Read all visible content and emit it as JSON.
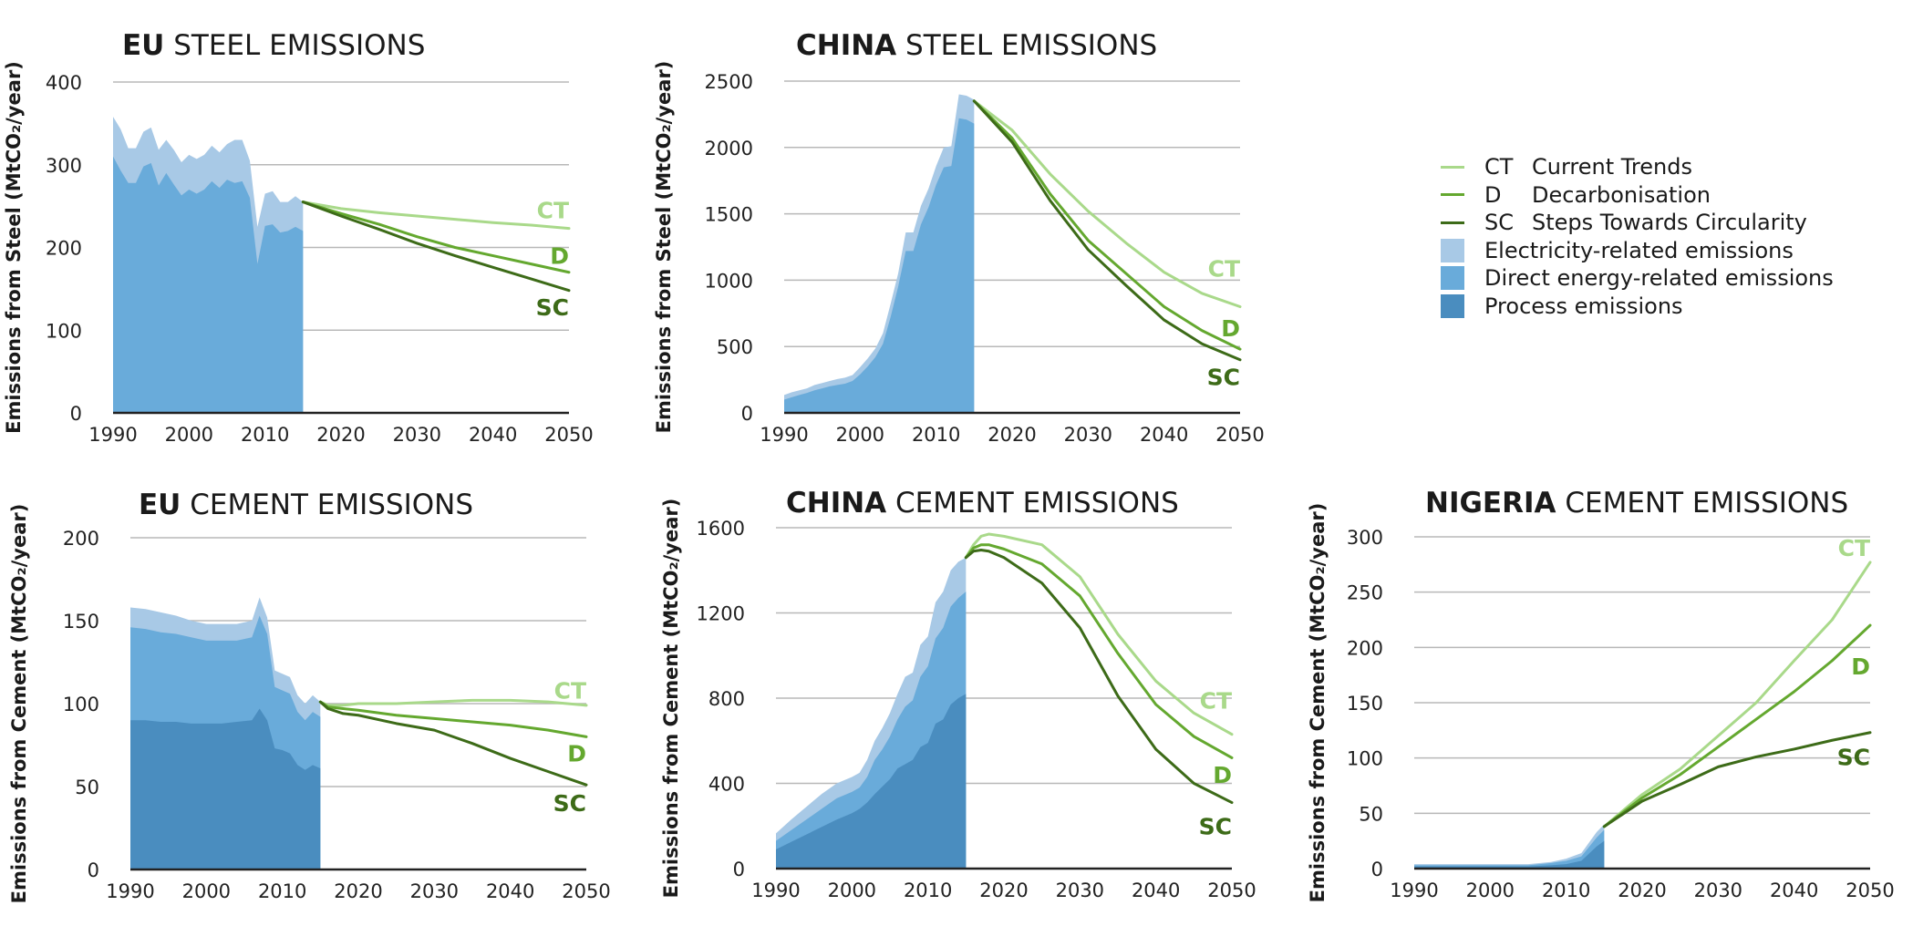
{
  "colors": {
    "CT": "#a9d98a",
    "D": "#64a82f",
    "SC": "#3d6b18",
    "electricity": "#a8c9e6",
    "direct": "#69abda",
    "process": "#4a8dbf",
    "grid": "#b8b8b8",
    "axis": "#222222"
  },
  "legend": [
    {
      "code": "CT",
      "label": "Current Trends",
      "kind": "line",
      "color": "#a9d98a"
    },
    {
      "code": "D",
      "label": "Decarbonisation",
      "kind": "line",
      "color": "#64a82f"
    },
    {
      "code": "SC",
      "label": "Steps Towards Circularity",
      "kind": "line",
      "color": "#3d6b18"
    },
    {
      "code": "",
      "label": "Electricity-related emissions",
      "kind": "box",
      "color": "#a8c9e6"
    },
    {
      "code": "",
      "label": "Direct energy-related emissions",
      "kind": "box",
      "color": "#69abda"
    },
    {
      "code": "",
      "label": "Process emissions",
      "kind": "box",
      "color": "#4a8dbf"
    }
  ],
  "chart_data": [
    {
      "id": "eu-steel",
      "type": "area",
      "title_bold": "EU",
      "title_rest": "STEEL EMISSIONS",
      "ylabel": "Emissions from Steel (MtCO₂/year)",
      "xlim": [
        1990,
        2050
      ],
      "ylim": [
        0,
        400
      ],
      "yticks": [
        0,
        100,
        200,
        300,
        400
      ],
      "xticks": [
        1990,
        2000,
        2010,
        2020,
        2030,
        2040,
        2050
      ],
      "history": {
        "years": [
          1990,
          1991,
          1992,
          1993,
          1994,
          1995,
          1996,
          1997,
          1998,
          1999,
          2000,
          2001,
          2002,
          2003,
          2004,
          2005,
          2006,
          2007,
          2008,
          2009,
          2010,
          2011,
          2012,
          2013,
          2014,
          2015
        ],
        "series": [
          {
            "name": "Electricity-related emissions",
            "values": [
              358,
              343,
              320,
              320,
              340,
              345,
              318,
              330,
              318,
              303,
              312,
              307,
              312,
              323,
              315,
              325,
              330,
              330,
              305,
              225,
              265,
              268,
              255,
              255,
              262,
              255
            ]
          },
          {
            "name": "Direct energy-related emissions",
            "values": [
              310,
              293,
              278,
              278,
              298,
              302,
              275,
              290,
              276,
              263,
              270,
              265,
              270,
              280,
              272,
              282,
              278,
              280,
              260,
              180,
              226,
              228,
              218,
              220,
              225,
              220
            ]
          }
        ]
      },
      "projection": {
        "years": [
          2015,
          2020,
          2025,
          2030,
          2035,
          2040,
          2045,
          2050
        ],
        "series": [
          {
            "name": "CT",
            "values": [
              255,
              247,
              242,
              238,
              234,
              230,
              227,
              223
            ]
          },
          {
            "name": "D",
            "values": [
              255,
              241,
              228,
              213,
              200,
              190,
              180,
              170
            ]
          },
          {
            "name": "SC",
            "values": [
              255,
              238,
              222,
              205,
              190,
              176,
              162,
              148
            ]
          }
        ]
      },
      "labels": [
        {
          "text": "CT",
          "series": "CT",
          "x": 2050,
          "y": 245
        },
        {
          "text": "D",
          "series": "D",
          "x": 2050,
          "y": 190
        },
        {
          "text": "SC",
          "series": "SC",
          "x": 2050,
          "y": 128
        }
      ]
    },
    {
      "id": "china-steel",
      "type": "area",
      "title_bold": "CHINA",
      "title_rest": "STEEL EMISSIONS",
      "ylabel": "Emissions from Steel (MtCO₂/year)",
      "xlim": [
        1990,
        2050
      ],
      "ylim": [
        0,
        2500
      ],
      "yticks": [
        0,
        500,
        1000,
        1500,
        2000,
        2500
      ],
      "xticks": [
        1990,
        2000,
        2010,
        2020,
        2030,
        2040,
        2050
      ],
      "history": {
        "years": [
          1990,
          1991,
          1992,
          1993,
          1994,
          1995,
          1996,
          1997,
          1998,
          1999,
          2000,
          2001,
          2002,
          2003,
          2004,
          2005,
          2006,
          2007,
          2008,
          2009,
          2010,
          2011,
          2012,
          2013,
          2014,
          2015
        ],
        "series": [
          {
            "name": "Electricity-related emissions",
            "values": [
              135,
              155,
              170,
              185,
              210,
              225,
              240,
              255,
              265,
              285,
              345,
              410,
              485,
              600,
              820,
              1050,
              1360,
              1360,
              1560,
              1690,
              1860,
              2000,
              2010,
              2400,
              2390,
              2360
            ]
          },
          {
            "name": "Direct energy-related emissions",
            "values": [
              100,
              118,
              135,
              150,
              170,
              185,
              200,
              210,
              220,
              240,
              290,
              350,
              420,
              520,
              720,
              950,
              1220,
              1220,
              1420,
              1550,
              1720,
              1850,
              1860,
              2220,
              2210,
              2180
            ]
          }
        ]
      },
      "projection": {
        "years": [
          2015,
          2020,
          2025,
          2030,
          2035,
          2040,
          2045,
          2050
        ],
        "series": [
          {
            "name": "CT",
            "values": [
              2350,
              2130,
              1800,
              1520,
              1280,
              1060,
              900,
              800
            ]
          },
          {
            "name": "D",
            "values": [
              2350,
              2070,
              1650,
              1300,
              1050,
              800,
              620,
              480
            ]
          },
          {
            "name": "SC",
            "values": [
              2350,
              2040,
              1600,
              1230,
              960,
              700,
              520,
              400
            ]
          }
        ]
      },
      "labels": [
        {
          "text": "CT",
          "series": "CT",
          "x": 2050,
          "y": 1090
        },
        {
          "text": "D",
          "series": "D",
          "x": 2050,
          "y": 640
        },
        {
          "text": "SC",
          "series": "SC",
          "x": 2050,
          "y": 270
        }
      ]
    },
    {
      "id": "eu-cement",
      "type": "area",
      "title_bold": "EU",
      "title_rest": "CEMENT EMISSIONS",
      "ylabel": "Emissions from Cement (MtCO₂/year)",
      "xlim": [
        1990,
        2050
      ],
      "ylim": [
        0,
        200
      ],
      "yticks": [
        0,
        50,
        100,
        150,
        200
      ],
      "xticks": [
        1990,
        2000,
        2010,
        2020,
        2030,
        2040,
        2050
      ],
      "history": {
        "years": [
          1990,
          1992,
          1994,
          1996,
          1998,
          2000,
          2002,
          2004,
          2006,
          2007,
          2008,
          2009,
          2010,
          2011,
          2012,
          2013,
          2014,
          2015
        ],
        "series": [
          {
            "name": "Electricity-related emissions",
            "values": [
              158,
              157,
              155,
              153,
              150,
              148,
              148,
              148,
              150,
              164,
              152,
              120,
              118,
              116,
              105,
              100,
              105,
              101
            ]
          },
          {
            "name": "Direct energy-related emissions",
            "values": [
              146,
              145,
              143,
              142,
              140,
              138,
              138,
              138,
              140,
              153,
              142,
              110,
              108,
              106,
              95,
              90,
              95,
              92
            ]
          },
          {
            "name": "Process emissions",
            "values": [
              90,
              90,
              89,
              89,
              88,
              88,
              88,
              89,
              90,
              97,
              90,
              73,
              72,
              70,
              63,
              60,
              63,
              61
            ]
          }
        ]
      },
      "projection": {
        "years": [
          2015,
          2016,
          2018,
          2020,
          2025,
          2030,
          2035,
          2040,
          2045,
          2050
        ],
        "series": [
          {
            "name": "CT",
            "values": [
              101,
              99,
              99,
              100,
              100,
              101,
              102,
              102,
              101,
              99
            ]
          },
          {
            "name": "D",
            "values": [
              101,
              98,
              97,
              96,
              93,
              91,
              89,
              87,
              84,
              80
            ]
          },
          {
            "name": "SC",
            "values": [
              101,
              97,
              94,
              93,
              88,
              84,
              76,
              67,
              59,
              51
            ]
          }
        ]
      },
      "labels": [
        {
          "text": "CT",
          "series": "CT",
          "x": 2050,
          "y": 108
        },
        {
          "text": "D",
          "series": "D",
          "x": 2050,
          "y": 70
        },
        {
          "text": "SC",
          "series": "SC",
          "x": 2050,
          "y": 40
        }
      ]
    },
    {
      "id": "china-cement",
      "type": "area",
      "title_bold": "CHINA",
      "title_rest": "CEMENT EMISSIONS",
      "ylabel": "Emissions from Cement (MtCO₂/year)",
      "xlim": [
        1990,
        2050
      ],
      "ylim": [
        0,
        1700
      ],
      "yticks": [
        0,
        400,
        800,
        1200,
        1600
      ],
      "xticks": [
        1990,
        2000,
        2010,
        2020,
        2030,
        2040,
        2050
      ],
      "history": {
        "years": [
          1990,
          1992,
          1994,
          1996,
          1998,
          2000,
          2001,
          2002,
          2003,
          2004,
          2005,
          2006,
          2007,
          2008,
          2009,
          2010,
          2011,
          2012,
          2013,
          2014,
          2015
        ],
        "series": [
          {
            "name": "Electricity-related emissions",
            "values": [
              165,
              230,
              290,
              350,
              400,
              430,
              450,
              510,
              600,
              660,
              730,
              820,
              900,
              920,
              1050,
              1090,
              1250,
              1300,
              1400,
              1440,
              1460
            ]
          },
          {
            "name": "Direct energy-related emissions",
            "values": [
              130,
              180,
              230,
              280,
              330,
              360,
              380,
              430,
              510,
              560,
              620,
              700,
              760,
              790,
              900,
              950,
              1080,
              1130,
              1230,
              1270,
              1300
            ]
          },
          {
            "name": "Process emissions",
            "values": [
              90,
              125,
              160,
              195,
              230,
              260,
              280,
              310,
              350,
              385,
              420,
              470,
              490,
              510,
              570,
              590,
              680,
              700,
              770,
              800,
              820
            ]
          }
        ]
      },
      "projection": {
        "years": [
          2015,
          2016,
          2017,
          2018,
          2020,
          2025,
          2030,
          2035,
          2040,
          2045,
          2050
        ],
        "series": [
          {
            "name": "CT",
            "values": [
              1460,
              1520,
              1560,
              1570,
              1560,
              1520,
              1370,
              1100,
              880,
              730,
              630
            ]
          },
          {
            "name": "D",
            "values": [
              1460,
              1505,
              1520,
              1520,
              1500,
              1430,
              1280,
              1010,
              770,
              620,
              520
            ]
          },
          {
            "name": "SC",
            "values": [
              1460,
              1490,
              1495,
              1490,
              1460,
              1340,
              1130,
              810,
              560,
              400,
              310
            ]
          }
        ]
      },
      "labels": [
        {
          "text": "CT",
          "series": "CT",
          "x": 2050,
          "y": 790
        },
        {
          "text": "D",
          "series": "D",
          "x": 2050,
          "y": 440
        },
        {
          "text": "SC",
          "series": "SC",
          "x": 2050,
          "y": 200
        }
      ]
    },
    {
      "id": "nigeria-cement",
      "type": "area",
      "title_bold": "NIGERIA",
      "title_rest": "CEMENT EMISSIONS",
      "ylabel": "Emissions from Cement (MtCO₂/year)",
      "xlim": [
        1990,
        2050
      ],
      "ylim": [
        0,
        300
      ],
      "yticks": [
        0,
        50,
        100,
        150,
        200,
        250,
        300
      ],
      "xticks": [
        1990,
        2000,
        2010,
        2020,
        2030,
        2040,
        2050
      ],
      "history": {
        "years": [
          1990,
          1995,
          2000,
          2005,
          2008,
          2010,
          2012,
          2014,
          2015
        ],
        "series": [
          {
            "name": "Electricity-related emissions",
            "values": [
              4,
              4,
              4,
              4,
              6,
              9,
              14,
              33,
              40
            ]
          },
          {
            "name": "Direct energy-related emissions",
            "values": [
              3,
              3,
              3,
              3,
              5,
              7,
              11,
              28,
              35
            ]
          },
          {
            "name": "Process emissions",
            "values": [
              2,
              2,
              2,
              2,
              3,
              4,
              7,
              20,
              25
            ]
          }
        ]
      },
      "projection": {
        "years": [
          2015,
          2020,
          2025,
          2030,
          2035,
          2040,
          2045,
          2050
        ],
        "series": [
          {
            "name": "CT",
            "values": [
              38,
              67,
              90,
              120,
              150,
              188,
              225,
              277
            ]
          },
          {
            "name": "D",
            "values": [
              38,
              64,
              85,
              110,
              135,
              160,
              188,
              220
            ]
          },
          {
            "name": "SC",
            "values": [
              38,
              61,
              76,
              92,
              101,
              108,
              116,
              123
            ]
          }
        ]
      },
      "labels": [
        {
          "text": "CT",
          "series": "CT",
          "x": 2050,
          "y": 290
        },
        {
          "text": "D",
          "series": "D",
          "x": 2050,
          "y": 183
        },
        {
          "text": "SC",
          "series": "SC",
          "x": 2050,
          "y": 101
        }
      ]
    }
  ]
}
